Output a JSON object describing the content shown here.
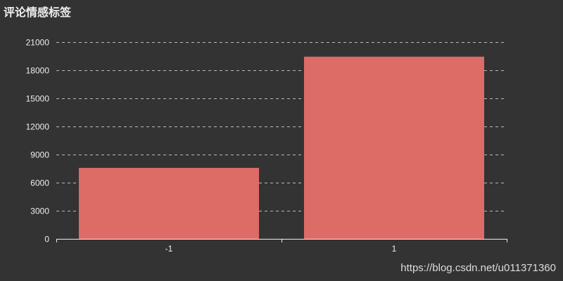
{
  "chart_data": {
    "type": "bar",
    "title": "评论情感标签",
    "categories": [
      "-1",
      "1"
    ],
    "values": [
      7580,
      19450
    ],
    "ylim": [
      0,
      21000
    ],
    "yticks": [
      0,
      3000,
      6000,
      9000,
      12000,
      15000,
      18000,
      21000
    ],
    "grid": true,
    "bar_color": "#dd6b66",
    "background": "#333333"
  },
  "watermark": "https://blog.csdn.net/u011371360"
}
